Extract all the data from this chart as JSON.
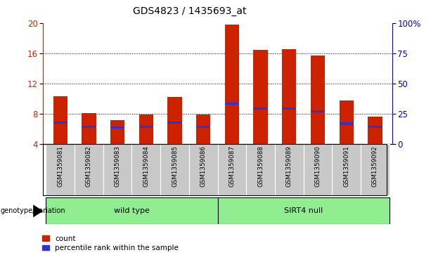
{
  "title": "GDS4823 / 1435693_at",
  "samples": [
    "GSM1359081",
    "GSM1359082",
    "GSM1359083",
    "GSM1359084",
    "GSM1359085",
    "GSM1359086",
    "GSM1359087",
    "GSM1359088",
    "GSM1359089",
    "GSM1359090",
    "GSM1359091",
    "GSM1359092"
  ],
  "count_values": [
    10.3,
    8.1,
    7.2,
    7.9,
    10.2,
    7.9,
    19.8,
    16.4,
    16.5,
    15.7,
    9.8,
    7.6
  ],
  "percentile_values": [
    6.8,
    6.3,
    6.2,
    6.3,
    6.8,
    6.3,
    9.3,
    8.7,
    8.7,
    8.3,
    6.7,
    6.3
  ],
  "groups": [
    {
      "label": "wild type",
      "start": 0,
      "end": 6,
      "color": "#90ee90"
    },
    {
      "label": "SIRT4 null",
      "start": 6,
      "end": 12,
      "color": "#90ee90"
    }
  ],
  "bar_color": "#cc2200",
  "blue_color": "#3333cc",
  "ymin": 4,
  "ymax": 20,
  "yticks": [
    4,
    8,
    12,
    16,
    20
  ],
  "y2min": 0,
  "y2max": 100,
  "y2ticks": [
    0,
    25,
    50,
    75,
    100
  ],
  "grid_values": [
    8,
    12,
    16
  ],
  "bar_width": 0.5,
  "background_color": "#ffffff",
  "plot_bg_color": "#ffffff",
  "tick_area_bg": "#c8c8c8",
  "genotype_label": "genotype/variation",
  "legend_count_label": "count",
  "legend_pct_label": "percentile rank within the sample",
  "title_fontsize": 10,
  "tick_fontsize": 8,
  "left_yaxis_color": "#cc2200",
  "right_yaxis_color": "#0000cc"
}
